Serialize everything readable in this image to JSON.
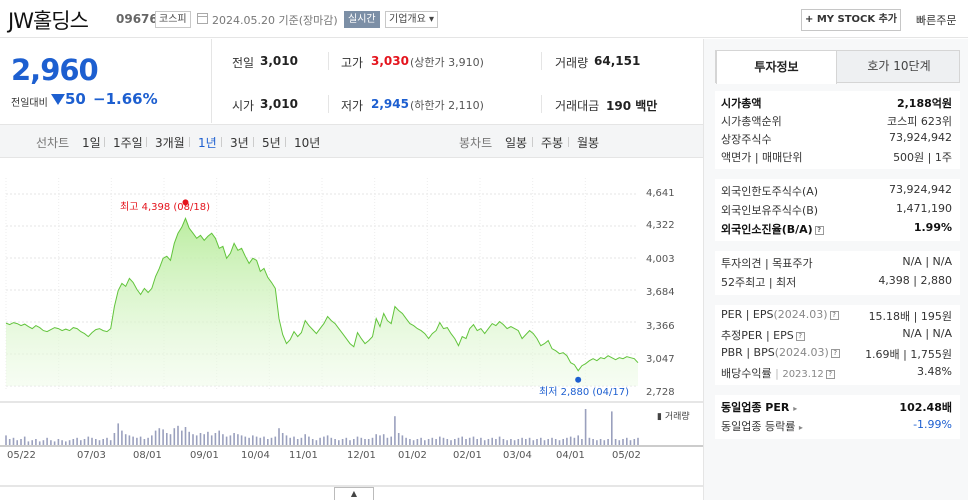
{
  "header": {
    "name": "JW홀딩스",
    "code": "096760",
    "market": "코스피",
    "date": "2024.05.20",
    "basis": "기준(장마감)",
    "realtime": "실시간",
    "company_btn": "기업개요 ▾",
    "mystock": "+ MY STOCK 추가",
    "quick_order": "빠른주문"
  },
  "price": {
    "current": "2,960",
    "diff_label": "전일대비",
    "diff": "50",
    "rate": "−1.66%"
  },
  "quote": {
    "prev_label": "전일",
    "prev": "3,010",
    "high_label": "고가",
    "high": "3,030",
    "upper": "(상한가 3,910)",
    "volume_label": "거래량",
    "volume": "64,151",
    "open_label": "시가",
    "open": "3,010",
    "low_label": "저가",
    "low": "2,945",
    "lower": "(하한가 2,110)",
    "amount_label": "거래대금",
    "amount": "190 백만"
  },
  "periods": {
    "line_label": "선차트",
    "line_items": [
      "1일",
      "1주일",
      "3개월",
      "1년",
      "3년",
      "5년",
      "10년"
    ],
    "selected": "1년",
    "candle_label": "봉차트",
    "candle_items": [
      "일봉",
      "주봉",
      "월봉"
    ]
  },
  "chart_data": {
    "type": "area",
    "y_ticks": [
      "4,641",
      "4,322",
      "4,003",
      "3,684",
      "3,366",
      "3,047",
      "2,728"
    ],
    "x_ticks": [
      "05/22",
      "07/03",
      "08/01",
      "09/01",
      "10/04",
      "11/01",
      "12/01",
      "01/02",
      "02/01",
      "03/04",
      "04/01",
      "05/02"
    ],
    "ylim": [
      2728,
      4641
    ],
    "high_label": "최고 4,398 (08/18)",
    "low_label": "최저 2,880 (04/17)",
    "high": 4398,
    "low": 2880,
    "volume_legend": "거래량",
    "values": [
      3355,
      3340,
      3360,
      3350,
      3330,
      3345,
      3320,
      3300,
      3330,
      3310,
      3280,
      3270,
      3290,
      3310,
      3300,
      3280,
      3295,
      3280,
      3310,
      3300,
      3270,
      3250,
      3220,
      3260,
      3290,
      3300,
      3280,
      3270,
      3300,
      3520,
      3680,
      3750,
      3720,
      3800,
      3760,
      3690,
      3640,
      3700,
      3660,
      3700,
      3820,
      3900,
      4000,
      4020,
      3980,
      4150,
      4250,
      4310,
      4398,
      4300,
      4250,
      4200,
      4230,
      4180,
      4220,
      4250,
      4200,
      4100,
      4120,
      4000,
      4050,
      4150,
      4080,
      4100,
      4020,
      3950,
      4000,
      3980,
      3870,
      3900,
      3810,
      3760,
      3700,
      3400,
      3240,
      3150,
      3190,
      3270,
      3220,
      3260,
      3380,
      3330,
      3290,
      3250,
      3300,
      3350,
      3420,
      3380,
      3350,
      3300,
      3250,
      3200,
      3150,
      3120,
      3260,
      3200,
      3150,
      3180,
      3220,
      3400,
      3320,
      3450,
      3380,
      3350,
      3520,
      3480,
      3450,
      3400,
      3350,
      3330,
      3300,
      3280,
      3250,
      3200,
      3250,
      3280,
      3360,
      3300,
      3310,
      3250,
      3200,
      3130,
      3220,
      3200,
      3300,
      3340,
      3280,
      3300,
      3250,
      3300,
      3350,
      3330,
      3370,
      3340,
      3300,
      3320,
      3300,
      3280,
      3200,
      3240,
      3280,
      3250,
      3200,
      3130,
      3150,
      3180,
      3100,
      3080,
      3050,
      3060,
      3030,
      2960,
      2940,
      2880,
      2930,
      2950,
      2980,
      3000,
      2980,
      3010,
      3000,
      3030,
      3010,
      2990,
      3010,
      3000,
      3020,
      3010,
      3000,
      2960
    ],
    "volumes": [
      8,
      5,
      6,
      4,
      5,
      7,
      3,
      4,
      5,
      3,
      4,
      6,
      4,
      3,
      5,
      4,
      3,
      4,
      5,
      6,
      4,
      5,
      7,
      6,
      5,
      4,
      5,
      6,
      4,
      10,
      18,
      12,
      9,
      8,
      7,
      6,
      7,
      5,
      6,
      8,
      12,
      14,
      13,
      10,
      9,
      14,
      16,
      12,
      15,
      11,
      9,
      8,
      10,
      9,
      11,
      8,
      10,
      12,
      9,
      7,
      8,
      10,
      9,
      8,
      7,
      6,
      8,
      7,
      6,
      7,
      5,
      6,
      7,
      14,
      10,
      8,
      6,
      7,
      5,
      6,
      9,
      7,
      5,
      4,
      6,
      7,
      8,
      6,
      5,
      4,
      5,
      6,
      4,
      5,
      7,
      6,
      5,
      5,
      6,
      9,
      8,
      9,
      6,
      7,
      24,
      10,
      8,
      6,
      5,
      4,
      5,
      6,
      4,
      5,
      6,
      5,
      7,
      6,
      5,
      4,
      5,
      6,
      7,
      5,
      6,
      7,
      5,
      6,
      4,
      5,
      6,
      5,
      7,
      5,
      4,
      5,
      4,
      5,
      6,
      5,
      6,
      4,
      5,
      6,
      4,
      5,
      6,
      5,
      4,
      5,
      6,
      7,
      6,
      8,
      5,
      30,
      6,
      5,
      4,
      5,
      4,
      5,
      28,
      5,
      4,
      5,
      6,
      4,
      5,
      6
    ]
  },
  "tabs": {
    "info": "투자정보",
    "hoga": "호가 10단계"
  },
  "info": {
    "mcap_label": "시가총액",
    "mcap": "2,188억원",
    "rank_label": "시가총액순위",
    "rank": "코스피 623위",
    "shares_label": "상장주식수",
    "shares": "73,924,942",
    "par_label": "액면가 | 매매단위",
    "par": "500원 | 1주",
    "foreign_limit_label": "외국인한도주식수(A)",
    "foreign_limit": "73,924,942",
    "foreign_hold_label": "외국인보유주식수(B)",
    "foreign_hold": "1,471,190",
    "foreign_ratio_label": "외국인소진율(B/A)",
    "foreign_ratio": "1.99%",
    "opinion_label": "투자의견 | 목표주가",
    "opinion": "N/A | N/A",
    "w52_label": "52주최고 | 최저",
    "w52": "4,398 | 2,880",
    "per_label": "PER | EPS",
    "per_period": "(2024.03)",
    "per": "15.18배 | 195원",
    "eper_label": "추정PER | EPS",
    "eper": "N/A | N/A",
    "pbr_label": "PBR | BPS",
    "pbr_period": "(2024.03)",
    "pbr": "1.69배 | 1,755원",
    "div_label": "배당수익률",
    "div_period": "2023.12",
    "div": "3.48%",
    "ind_per_label": "동일업종 PER",
    "ind_per": "102.48배",
    "ind_rate_label": "동일업종 등락률",
    "ind_rate": "-1.99%"
  },
  "colors": {
    "up": "#e4141d",
    "down": "#1d5fd0",
    "line": "#62c43c",
    "fill": "#c5f0b0"
  }
}
